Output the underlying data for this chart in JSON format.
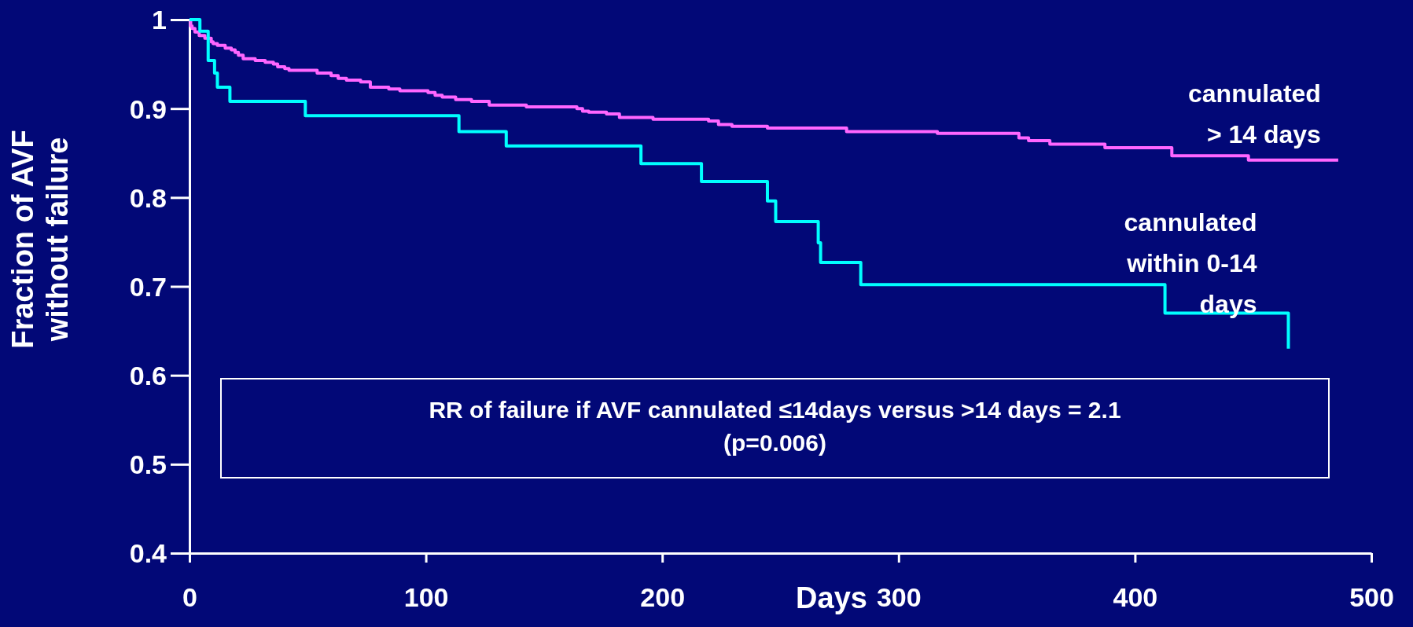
{
  "chart_data": {
    "type": "step",
    "xlabel": "Days",
    "ylabel": "Fraction of AVF without failure",
    "xlim": [
      0,
      500
    ],
    "xticks": [
      0,
      100,
      200,
      300,
      400,
      500
    ],
    "ylim": [
      0.4,
      1
    ],
    "yticks": [
      0.4,
      0.5,
      0.6,
      0.7,
      0.8,
      0.9,
      1
    ],
    "series": [
      {
        "name": "cannulated > 14 days",
        "color": "#ff66ff",
        "x": [
          0,
          0.5,
          1.1,
          2.3,
          4.1,
          6.5,
          9.2,
          10,
          11.8,
          15.1,
          17.7,
          19.3,
          20.7,
          22.7,
          27.8,
          32,
          35.5,
          37.3,
          40.3,
          42.1,
          54,
          59.9,
          62.9,
          66.4,
          72.4,
          76.5,
          84.3,
          89,
          100.9,
          103.9,
          106.9,
          112.6,
          119.3,
          126.8,
          142.5,
          163.9,
          166.3,
          168.9,
          176.4,
          181.9,
          196.1,
          219.6,
          223.8,
          229.5,
          244.5,
          278,
          316.4,
          350.9,
          355,
          364,
          387.3,
          415.6,
          448,
          486
        ],
        "values": [
          1,
          0.993,
          0.99,
          0.986,
          0.982,
          0.979,
          0.975,
          0.973,
          0.971,
          0.968,
          0.966,
          0.963,
          0.96,
          0.956,
          0.954,
          0.952,
          0.95,
          0.947,
          0.945,
          0.943,
          0.94,
          0.937,
          0.934,
          0.932,
          0.93,
          0.924,
          0.922,
          0.92,
          0.918,
          0.915,
          0.913,
          0.91,
          0.908,
          0.904,
          0.902,
          0.9,
          0.897,
          0.896,
          0.894,
          0.89,
          0.888,
          0.886,
          0.882,
          0.88,
          0.878,
          0.874,
          0.872,
          0.867,
          0.864,
          0.86,
          0.856,
          0.847,
          0.842,
          0.842
        ]
      },
      {
        "name": "cannulated within 0-14 days",
        "color": "#00ffff",
        "x": [
          0,
          4.4,
          7.9,
          10.6,
          11.8,
          17.1,
          49,
          114,
          134,
          191,
          216.6,
          244.5,
          248,
          266,
          267,
          284,
          412.7,
          464.9
        ],
        "values": [
          1,
          0.987,
          0.954,
          0.94,
          0.924,
          0.908,
          0.892,
          0.874,
          0.858,
          0.838,
          0.818,
          0.796,
          0.773,
          0.749,
          0.727,
          0.702,
          0.67,
          0.63
        ]
      }
    ],
    "annotations": [
      "RR of failure if AVF cannulated ≤14days versus >14 days = 2.1 (p=0.006)"
    ]
  }
}
